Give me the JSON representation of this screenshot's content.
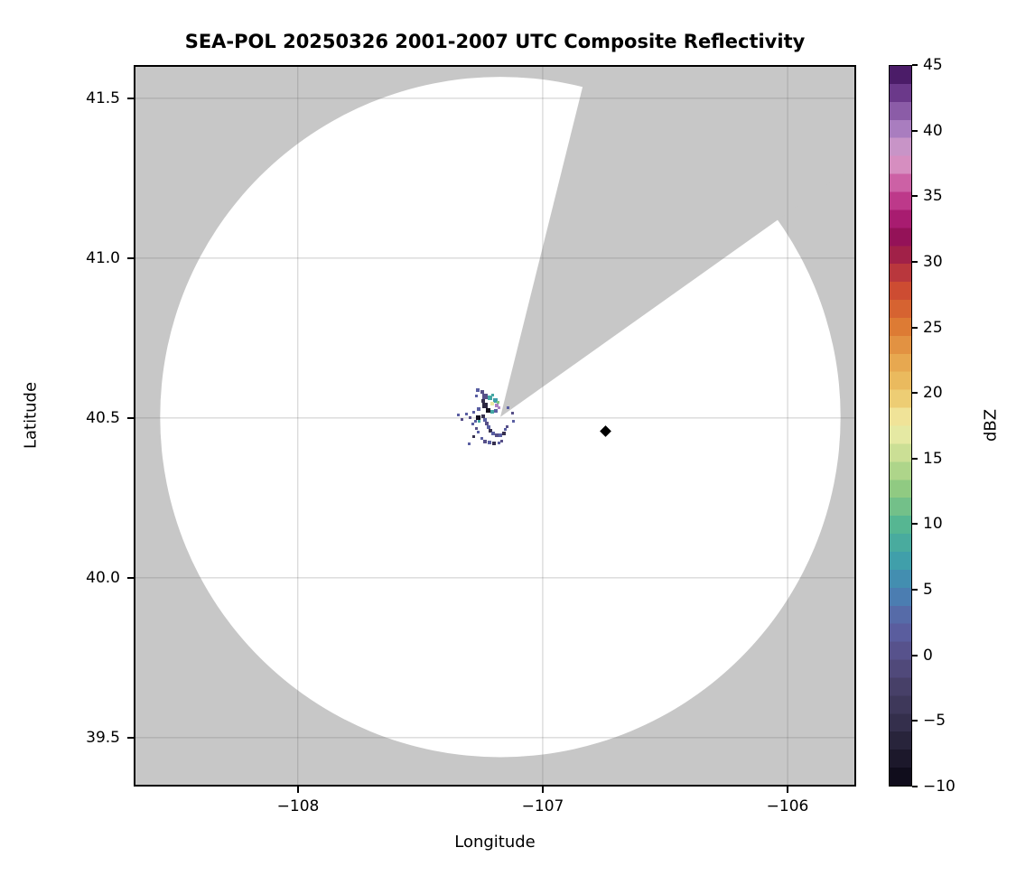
{
  "title": "SEA-POL 20250326 2001-2007 UTC Composite Reflectivity",
  "axes": {
    "xlabel": "Longitude",
    "ylabel": "Latitude",
    "xlim": [
      -108.67,
      -105.72
    ],
    "ylim": [
      39.347,
      41.604
    ],
    "x_ticks": [
      {
        "label": "−108",
        "value": -108
      },
      {
        "label": "−107",
        "value": -107
      },
      {
        "label": "−106",
        "value": -106
      }
    ],
    "y_ticks": [
      {
        "label": "41.5",
        "value": 41.5
      },
      {
        "label": "41.0",
        "value": 41.0
      },
      {
        "label": "40.5",
        "value": 40.5
      },
      {
        "label": "40.0",
        "value": 40.0
      },
      {
        "label": "39.5",
        "value": 39.5
      }
    ],
    "grid_color": "rgba(105,105,105,0.25)"
  },
  "colorbar": {
    "label": "dBZ",
    "min": -10,
    "max": 45,
    "n_bands": 40,
    "ticks": [
      {
        "label": "45",
        "value": 45
      },
      {
        "label": "40",
        "value": 40
      },
      {
        "label": "35",
        "value": 35
      },
      {
        "label": "30",
        "value": 30
      },
      {
        "label": "25",
        "value": 25
      },
      {
        "label": "20",
        "value": 20
      },
      {
        "label": "15",
        "value": 15
      },
      {
        "label": "10",
        "value": 10
      },
      {
        "label": "5",
        "value": 5
      },
      {
        "label": "0",
        "value": 0
      },
      {
        "label": "−5",
        "value": -5
      },
      {
        "label": "−10",
        "value": -10
      }
    ],
    "stops": [
      [
        -10,
        "#0a0714"
      ],
      [
        -7.5,
        "#201c30"
      ],
      [
        -5,
        "#36304e"
      ],
      [
        -2.5,
        "#474067"
      ],
      [
        0,
        "#575088"
      ],
      [
        2,
        "#5a5fa2"
      ],
      [
        3.5,
        "#5570ab"
      ],
      [
        5,
        "#4584b4"
      ],
      [
        7.5,
        "#3fa3a8"
      ],
      [
        10,
        "#57b691"
      ],
      [
        12.5,
        "#8cc981"
      ],
      [
        15,
        "#c3dc90"
      ],
      [
        17.5,
        "#f2eeaa"
      ],
      [
        20,
        "#ecc668"
      ],
      [
        22.5,
        "#e7a64e"
      ],
      [
        25,
        "#dd7c34"
      ],
      [
        27.5,
        "#d1512f"
      ],
      [
        30,
        "#ad2a43"
      ],
      [
        31.5,
        "#8e1150"
      ],
      [
        33,
        "#a3156a"
      ],
      [
        35,
        "#c24090"
      ],
      [
        36.5,
        "#d06fae"
      ],
      [
        38,
        "#daa0cb"
      ],
      [
        40,
        "#ad82c2"
      ],
      [
        42,
        "#81519f"
      ],
      [
        43.5,
        "#5e2b7e"
      ],
      [
        45,
        "#3a0f55"
      ]
    ]
  },
  "chart_data": {
    "type": "heatmap",
    "description": "Radar composite reflectivity PPI map: white circular coverage area on gray no-data background, one gray blocked azimuth sector, weak echo cluster near the radar, and a black diamond site marker.",
    "radar": {
      "name": "SEA-POL",
      "date": "20250326",
      "time_utc": "2001-2007",
      "lon": -107.173,
      "lat": 40.503,
      "range_deg_lon": 1.389
    },
    "mask_color": "#c7c7c7",
    "blocked_sector_azimuth_deg": [
      14,
      54.6
    ],
    "units": "dBZ",
    "echoes": [
      [
        -107.265,
        40.587,
        2,
        4
      ],
      [
        -107.247,
        40.581,
        0,
        4
      ],
      [
        -107.272,
        40.57,
        2,
        3
      ],
      [
        -107.236,
        40.567,
        0,
        6
      ],
      [
        -107.217,
        40.562,
        8,
        5
      ],
      [
        -107.195,
        40.556,
        7,
        5
      ],
      [
        -107.206,
        40.545,
        17,
        4
      ],
      [
        -107.188,
        40.539,
        40,
        4
      ],
      [
        -107.243,
        40.553,
        -5,
        4
      ],
      [
        -107.236,
        40.539,
        -6,
        6
      ],
      [
        -107.221,
        40.525,
        -9,
        5
      ],
      [
        -107.206,
        40.519,
        8,
        4
      ],
      [
        -107.191,
        40.522,
        2,
        4
      ],
      [
        -107.177,
        40.533,
        40,
        3
      ],
      [
        -107.261,
        40.528,
        2,
        4
      ],
      [
        -107.283,
        40.519,
        2,
        3
      ],
      [
        -107.313,
        40.513,
        2,
        3
      ],
      [
        -107.298,
        40.502,
        0,
        3
      ],
      [
        -107.265,
        40.502,
        -9,
        5
      ],
      [
        -107.243,
        40.505,
        -5,
        4
      ],
      [
        -107.236,
        40.494,
        2,
        4
      ],
      [
        -107.228,
        40.482,
        0,
        4
      ],
      [
        -107.221,
        40.471,
        2,
        4
      ],
      [
        -107.213,
        40.46,
        -5,
        4
      ],
      [
        -107.202,
        40.451,
        2,
        4
      ],
      [
        -107.188,
        40.446,
        0,
        4
      ],
      [
        -107.173,
        40.446,
        2,
        4
      ],
      [
        -107.158,
        40.451,
        -5,
        4
      ],
      [
        -107.151,
        40.463,
        2,
        3
      ],
      [
        -107.147,
        40.474,
        0,
        3
      ],
      [
        -107.14,
        40.531,
        2,
        3
      ],
      [
        -107.125,
        40.516,
        0,
        3
      ],
      [
        -107.118,
        40.491,
        2,
        3
      ],
      [
        -107.343,
        40.51,
        2,
        3
      ],
      [
        -107.328,
        40.496,
        0,
        3
      ],
      [
        -107.287,
        40.48,
        2,
        3
      ],
      [
        -107.272,
        40.468,
        0,
        3
      ],
      [
        -107.265,
        40.457,
        2,
        3
      ],
      [
        -107.283,
        40.443,
        -5,
        3
      ],
      [
        -107.25,
        40.435,
        2,
        3
      ],
      [
        -107.236,
        40.426,
        0,
        4
      ],
      [
        -107.217,
        40.423,
        2,
        4
      ],
      [
        -107.199,
        40.42,
        -5,
        4
      ],
      [
        -107.18,
        40.423,
        2,
        3
      ],
      [
        -107.166,
        40.429,
        0,
        3
      ],
      [
        -107.302,
        40.418,
        2,
        3
      ],
      [
        -107.206,
        40.573,
        8,
        3
      ],
      [
        -107.184,
        40.548,
        12,
        3
      ],
      [
        -107.258,
        40.491,
        8,
        3
      ],
      [
        -107.276,
        40.491,
        2,
        3
      ]
    ],
    "marker": {
      "shape": "diamond",
      "color": "#000000",
      "lon": -106.742,
      "lat": 40.46
    }
  }
}
